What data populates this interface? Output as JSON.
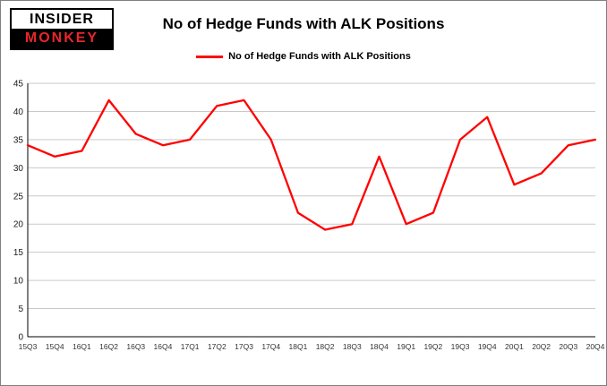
{
  "logo": {
    "line1": "INSIDER",
    "line2": "MONKEY"
  },
  "title": "No of Hedge Funds with ALK Positions",
  "legend": {
    "label": "No of Hedge Funds with ALK Positions",
    "color": "#ff0000"
  },
  "colors": {
    "line": "#ff0000",
    "grid": "#c9c9c9",
    "axis": "#000000",
    "tick_label": "#1a1a1a",
    "x_label": "#333333",
    "background": "#ffffff"
  },
  "chart_data": {
    "type": "line",
    "title": "No of Hedge Funds with ALK Positions",
    "xlabel": "",
    "ylabel": "",
    "ylim": [
      0,
      45
    ],
    "ytick_step": 5,
    "grid": true,
    "legend_position": "top",
    "categories": [
      "15Q3",
      "15Q4",
      "16Q1",
      "16Q2",
      "16Q3",
      "16Q4",
      "17Q1",
      "17Q2",
      "17Q3",
      "17Q4",
      "18Q1",
      "18Q2",
      "18Q3",
      "18Q4",
      "19Q1",
      "19Q2",
      "19Q3",
      "19Q4",
      "20Q1",
      "20Q2",
      "20Q3",
      "20Q4"
    ],
    "series": [
      {
        "name": "No of Hedge Funds with ALK Positions",
        "color": "#ff0000",
        "values": [
          34,
          32,
          33,
          42,
          36,
          34,
          35,
          41,
          42,
          35,
          22,
          19,
          20,
          32,
          20,
          22,
          35,
          39,
          27,
          29,
          34,
          35
        ]
      }
    ]
  }
}
